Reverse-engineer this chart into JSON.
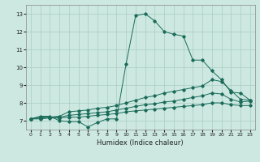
{
  "xlabel": "Humidex (Indice chaleur)",
  "bg_color": "#cce8e0",
  "line_color": "#1a6b5a",
  "grid_color": "#aaccc4",
  "xlim": [
    -0.5,
    23.5
  ],
  "ylim": [
    6.5,
    13.5
  ],
  "xticks": [
    0,
    1,
    2,
    3,
    4,
    5,
    6,
    7,
    8,
    9,
    10,
    11,
    12,
    13,
    14,
    15,
    16,
    17,
    18,
    19,
    20,
    21,
    22,
    23
  ],
  "yticks": [
    7,
    8,
    9,
    10,
    11,
    12,
    13
  ],
  "series": [
    {
      "x": [
        0,
        1,
        2,
        3,
        4,
        5,
        6,
        7,
        8,
        9,
        10,
        11,
        12,
        13,
        14,
        15,
        16,
        17,
        18,
        19,
        20,
        21,
        22,
        23
      ],
      "y": [
        7.1,
        7.25,
        7.25,
        7.0,
        6.95,
        6.95,
        6.65,
        6.9,
        7.1,
        7.1,
        10.2,
        12.9,
        13.0,
        12.6,
        12.0,
        11.85,
        11.75,
        10.4,
        10.4,
        9.8,
        9.3,
        8.6,
        8.55,
        8.15
      ]
    },
    {
      "x": [
        0,
        1,
        2,
        3,
        4,
        5,
        6,
        7,
        8,
        9,
        10,
        11,
        12,
        13,
        14,
        15,
        16,
        17,
        18,
        19,
        20,
        21,
        22,
        23
      ],
      "y": [
        7.1,
        7.2,
        7.2,
        7.25,
        7.5,
        7.55,
        7.6,
        7.7,
        7.75,
        7.85,
        8.0,
        8.15,
        8.3,
        8.4,
        8.55,
        8.65,
        8.75,
        8.85,
        8.95,
        9.3,
        9.2,
        8.7,
        8.2,
        8.15
      ]
    },
    {
      "x": [
        0,
        1,
        2,
        3,
        4,
        5,
        6,
        7,
        8,
        9,
        10,
        11,
        12,
        13,
        14,
        15,
        16,
        17,
        18,
        19,
        20,
        21,
        22,
        23
      ],
      "y": [
        7.1,
        7.15,
        7.2,
        7.2,
        7.3,
        7.35,
        7.4,
        7.45,
        7.5,
        7.6,
        7.7,
        7.8,
        7.9,
        7.95,
        8.05,
        8.1,
        8.2,
        8.3,
        8.4,
        8.55,
        8.5,
        8.2,
        8.05,
        8.1
      ]
    },
    {
      "x": [
        0,
        1,
        2,
        3,
        4,
        5,
        6,
        7,
        8,
        9,
        10,
        11,
        12,
        13,
        14,
        15,
        16,
        17,
        18,
        19,
        20,
        21,
        22,
        23
      ],
      "y": [
        7.1,
        7.1,
        7.15,
        7.15,
        7.2,
        7.2,
        7.25,
        7.3,
        7.35,
        7.4,
        7.5,
        7.55,
        7.6,
        7.65,
        7.7,
        7.75,
        7.8,
        7.85,
        7.9,
        8.0,
        8.0,
        7.9,
        7.85,
        7.85
      ]
    }
  ]
}
